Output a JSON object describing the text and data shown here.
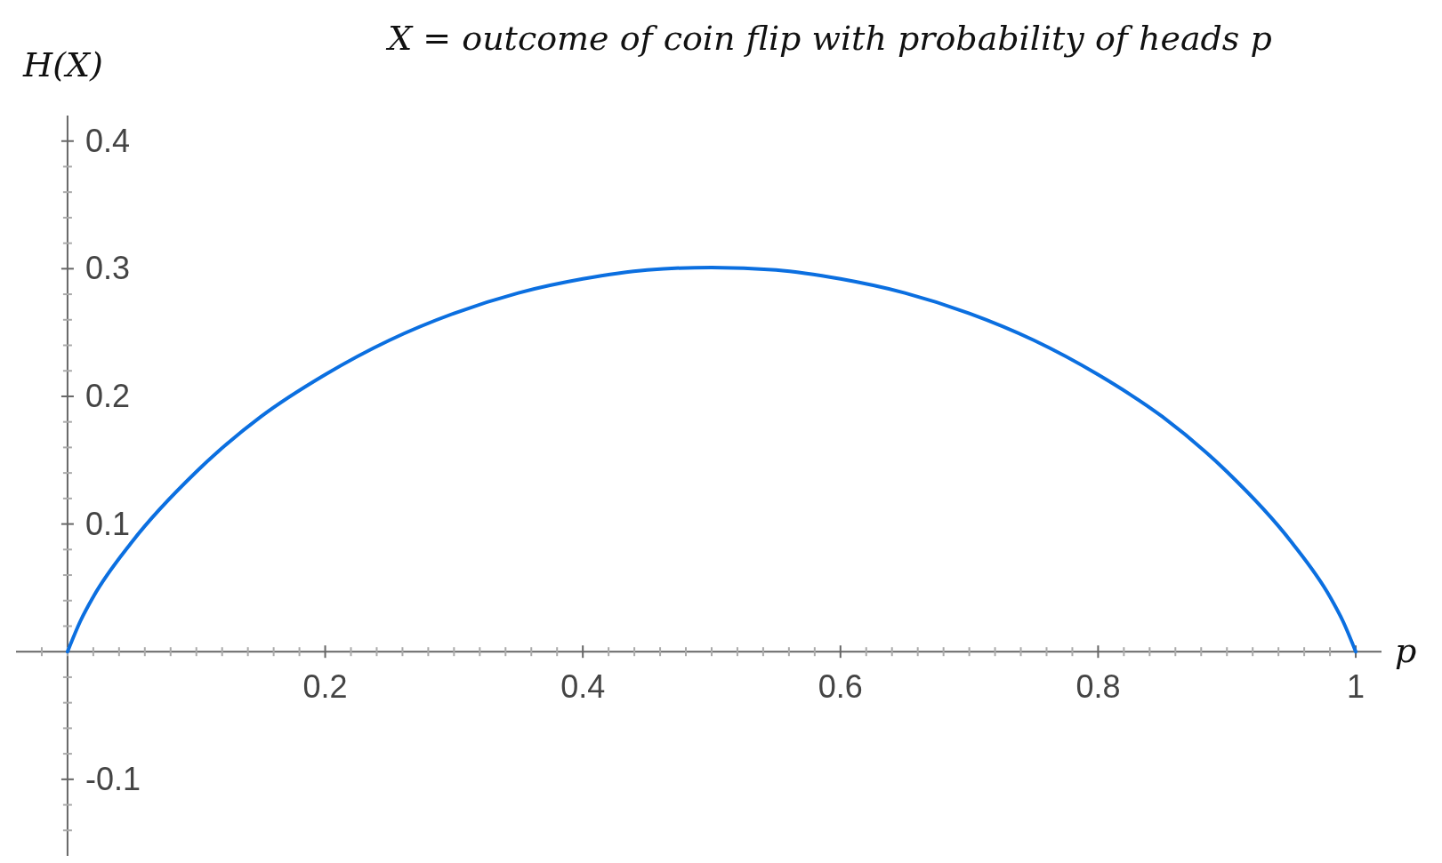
{
  "chart_data": {
    "type": "line",
    "title": "X = outcome of coin flip with probability of heads p",
    "xlabel": "p",
    "ylabel": "H(X)",
    "x": [
      0,
      0.01,
      0.02,
      0.05,
      0.1,
      0.15,
      0.2,
      0.25,
      0.3,
      0.35,
      0.4,
      0.45,
      0.5,
      0.55,
      0.6,
      0.65,
      0.7,
      0.75,
      0.8,
      0.85,
      0.9,
      0.95,
      0.98,
      0.99,
      1
    ],
    "series": [
      {
        "color": "#0b6fe0",
        "values": [
          0,
          0.024,
          0.043,
          0.086,
          0.141,
          0.184,
          0.217,
          0.244,
          0.265,
          0.281,
          0.292,
          0.299,
          0.301,
          0.299,
          0.292,
          0.281,
          0.265,
          0.244,
          0.217,
          0.184,
          0.141,
          0.086,
          0.043,
          0.024,
          0
        ]
      }
    ],
    "xlim": [
      -0.04,
      1.02
    ],
    "ylim": [
      -0.16,
      0.42
    ],
    "xticks": [
      {
        "value": -0.02,
        "label": null
      },
      {
        "value": 0,
        "label": null
      },
      {
        "value": 0.02,
        "label": null
      },
      {
        "value": 0.04,
        "label": null
      },
      {
        "value": 0.06,
        "label": null
      },
      {
        "value": 0.08,
        "label": null
      },
      {
        "value": 0.1,
        "label": null
      },
      {
        "value": 0.12,
        "label": null
      },
      {
        "value": 0.14,
        "label": null
      },
      {
        "value": 0.16,
        "label": null
      },
      {
        "value": 0.18,
        "label": null
      },
      0.2,
      {
        "value": 0.22,
        "label": null
      },
      {
        "value": 0.24,
        "label": null
      },
      {
        "value": 0.26,
        "label": null
      },
      {
        "value": 0.28,
        "label": null
      },
      {
        "value": 0.3,
        "label": null
      },
      {
        "value": 0.32,
        "label": null
      },
      {
        "value": 0.34,
        "label": null
      },
      {
        "value": 0.36,
        "label": null
      },
      {
        "value": 0.38,
        "label": null
      },
      0.4,
      {
        "value": 0.42,
        "label": null
      },
      {
        "value": 0.44,
        "label": null
      },
      {
        "value": 0.46,
        "label": null
      },
      {
        "value": 0.48,
        "label": null
      },
      {
        "value": 0.5,
        "label": null
      },
      {
        "value": 0.52,
        "label": null
      },
      {
        "value": 0.54,
        "label": null
      },
      {
        "value": 0.56,
        "label": null
      },
      {
        "value": 0.58,
        "label": null
      },
      0.6,
      {
        "value": 0.62,
        "label": null
      },
      {
        "value": 0.64,
        "label": null
      },
      {
        "value": 0.66,
        "label": null
      },
      {
        "value": 0.68,
        "label": null
      },
      {
        "value": 0.7,
        "label": null
      },
      {
        "value": 0.72,
        "label": null
      },
      {
        "value": 0.74,
        "label": null
      },
      {
        "value": 0.76,
        "label": null
      },
      {
        "value": 0.78,
        "label": null
      },
      0.8,
      {
        "value": 0.82,
        "label": null
      },
      {
        "value": 0.84,
        "label": null
      },
      {
        "value": 0.86,
        "label": null
      },
      {
        "value": 0.88,
        "label": null
      },
      {
        "value": 0.9,
        "label": null
      },
      {
        "value": 0.92,
        "label": null
      },
      {
        "value": 0.94,
        "label": null
      },
      {
        "value": 0.96,
        "label": null
      },
      {
        "value": 0.98,
        "label": null
      },
      1
    ],
    "yticks": [
      {
        "value": -0.14,
        "label": null
      },
      {
        "value": -0.12,
        "label": null
      },
      -0.1,
      {
        "value": -0.08,
        "label": null
      },
      {
        "value": -0.06,
        "label": null
      },
      {
        "value": -0.04,
        "label": null
      },
      {
        "value": -0.02,
        "label": null
      },
      {
        "value": 0.02,
        "label": null
      },
      {
        "value": 0.04,
        "label": null
      },
      {
        "value": 0.06,
        "label": null
      },
      {
        "value": 0.08,
        "label": null
      },
      0.1,
      {
        "value": 0.12,
        "label": null
      },
      {
        "value": 0.14,
        "label": null
      },
      {
        "value": 0.16,
        "label": null
      },
      {
        "value": 0.18,
        "label": null
      },
      0.2,
      {
        "value": 0.22,
        "label": null
      },
      {
        "value": 0.24,
        "label": null
      },
      {
        "value": 0.26,
        "label": null
      },
      {
        "value": 0.28,
        "label": null
      },
      0.3,
      {
        "value": 0.32,
        "label": null
      },
      {
        "value": 0.34,
        "label": null
      },
      {
        "value": 0.36,
        "label": null
      },
      {
        "value": 0.38,
        "label": null
      },
      0.4
    ],
    "marker": "none",
    "line_style": "solid"
  }
}
